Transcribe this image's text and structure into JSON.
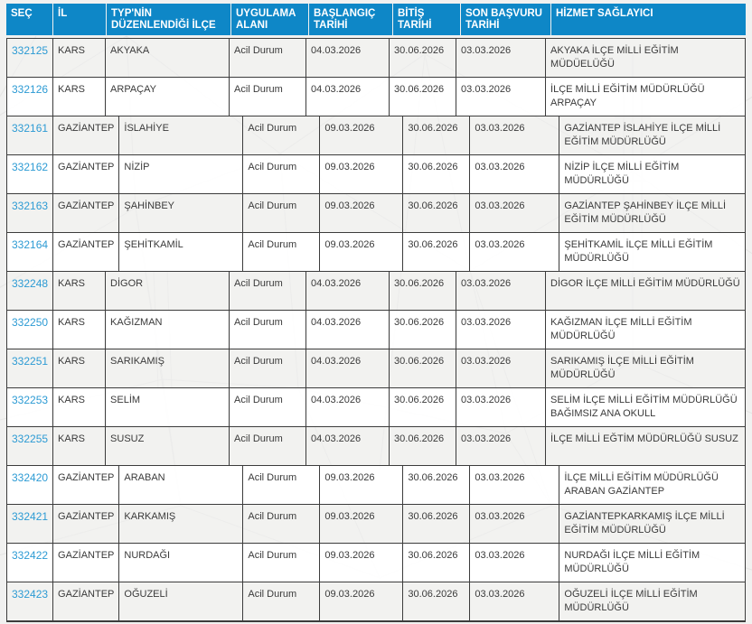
{
  "colors": {
    "header_background": "#0e87c7",
    "header_text": "#ffffff",
    "link_blue": "#2d9bd4",
    "cell_border": "#3c3c3c",
    "row_alt_background": "#f2f2f1",
    "page_background": "#f1f1f0"
  },
  "table": {
    "columns": [
      {
        "key": "id",
        "label": "SEÇ"
      },
      {
        "key": "il",
        "label": "İL"
      },
      {
        "key": "ilce",
        "label": "TYP'NİN DÜZENLENDİĞİ İLÇE"
      },
      {
        "key": "uygulama_alani",
        "label": "UYGULAMA ALANI"
      },
      {
        "key": "baslangic_tarihi",
        "label": "BAŞLANGIÇ TARİHİ"
      },
      {
        "key": "bitis_tarihi",
        "label": "BİTİŞ TARİHİ"
      },
      {
        "key": "son_basvuru_tarihi",
        "label": "SON BAŞVURU TARİHİ"
      },
      {
        "key": "hizmet_saglayici",
        "label": "HİZMET SAĞLAYICI"
      }
    ],
    "rows": [
      {
        "id": "332125",
        "il": "KARS",
        "ilce": "AKYAKA",
        "uygulama_alani": "Acil Durum",
        "baslangic_tarihi": "04.03.2026",
        "bitis_tarihi": "30.06.2026",
        "son_basvuru_tarihi": "03.03.2026",
        "hizmet_saglayici": "AKYAKA İLÇE MİLLİ EĞİTİM MÜDÜELÜĞÜ"
      },
      {
        "id": "332126",
        "il": "KARS",
        "ilce": "ARPAÇAY",
        "uygulama_alani": "Acil Durum",
        "baslangic_tarihi": "04.03.2026",
        "bitis_tarihi": "30.06.2026",
        "son_basvuru_tarihi": "03.03.2026",
        "hizmet_saglayici": "İLÇE MİLLİ EĞİTİM MÜDÜRLÜĞÜ ARPAÇAY"
      },
      {
        "id": "332161",
        "il": "GAZİANTEP",
        "ilce": "İSLAHİYE",
        "uygulama_alani": "Acil Durum",
        "baslangic_tarihi": "09.03.2026",
        "bitis_tarihi": "30.06.2026",
        "son_basvuru_tarihi": "03.03.2026",
        "hizmet_saglayici": "GAZİANTEP İSLAHİYE İLÇE MİLLİ EĞİTİM MÜDÜRLÜĞÜ"
      },
      {
        "id": "332162",
        "il": "GAZİANTEP",
        "ilce": "NİZİP",
        "uygulama_alani": "Acil Durum",
        "baslangic_tarihi": "09.03.2026",
        "bitis_tarihi": "30.06.2026",
        "son_basvuru_tarihi": "03.03.2026",
        "hizmet_saglayici": "NİZİP İLÇE MİLLİ EĞİTİM MÜDÜRLÜĞÜ"
      },
      {
        "id": "332163",
        "il": "GAZİANTEP",
        "ilce": "ŞAHİNBEY",
        "uygulama_alani": "Acil Durum",
        "baslangic_tarihi": "09.03.2026",
        "bitis_tarihi": "30.06.2026",
        "son_basvuru_tarihi": "03.03.2026",
        "hizmet_saglayici": "GAZİANTEP ŞAHİNBEY İLÇE MİLLİ EĞİTİM MÜDÜRLÜĞÜ"
      },
      {
        "id": "332164",
        "il": "GAZİANTEP",
        "ilce": "ŞEHİTKAMİL",
        "uygulama_alani": "Acil Durum",
        "baslangic_tarihi": "09.03.2026",
        "bitis_tarihi": "30.06.2026",
        "son_basvuru_tarihi": "03.03.2026",
        "hizmet_saglayici": "ŞEHİTKAMİL İLÇE MİLLİ EĞİTİM MÜDÜRLÜĞÜ"
      },
      {
        "id": "332248",
        "il": "KARS",
        "ilce": "DİGOR",
        "uygulama_alani": "Acil Durum",
        "baslangic_tarihi": "04.03.2026",
        "bitis_tarihi": "30.06.2026",
        "son_basvuru_tarihi": "03.03.2026",
        "hizmet_saglayici": "DİGOR İLÇE MİLLİ EĞİTİM MÜDÜRLÜĞÜ"
      },
      {
        "id": "332250",
        "il": "KARS",
        "ilce": "KAĞIZMAN",
        "uygulama_alani": "Acil Durum",
        "baslangic_tarihi": "04.03.2026",
        "bitis_tarihi": "30.06.2026",
        "son_basvuru_tarihi": "03.03.2026",
        "hizmet_saglayici": "KAĞIZMAN İLÇE MİLLİ EĞİTİM MÜDÜRLÜĞÜ"
      },
      {
        "id": "332251",
        "il": "KARS",
        "ilce": "SARIKAMIŞ",
        "uygulama_alani": "Acil Durum",
        "baslangic_tarihi": "04.03.2026",
        "bitis_tarihi": "30.06.2026",
        "son_basvuru_tarihi": "03.03.2026",
        "hizmet_saglayici": "SARIKAMIŞ İLÇE MİLLİ EĞİTİM MÜDÜRLÜĞÜ"
      },
      {
        "id": "332253",
        "il": "KARS",
        "ilce": "SELİM",
        "uygulama_alani": "Acil Durum",
        "baslangic_tarihi": "04.03.2026",
        "bitis_tarihi": "30.06.2026",
        "son_basvuru_tarihi": "03.03.2026",
        "hizmet_saglayici": "SELİM İLÇE MİLLİ EĞİTİM MÜDÜRLÜĞÜ BAĞIMSIZ ANA OKULL"
      },
      {
        "id": "332255",
        "il": "KARS",
        "ilce": "SUSUZ",
        "uygulama_alani": "Acil Durum",
        "baslangic_tarihi": "04.03.2026",
        "bitis_tarihi": "30.06.2026",
        "son_basvuru_tarihi": "03.03.2026",
        "hizmet_saglayici": "İLÇE MİLLİ EĞTİM MÜDÜRLÜĞÜ SUSUZ"
      },
      {
        "id": "332420",
        "il": "GAZİANTEP",
        "ilce": "ARABAN",
        "uygulama_alani": "Acil Durum",
        "baslangic_tarihi": "09.03.2026",
        "bitis_tarihi": "30.06.2026",
        "son_basvuru_tarihi": "03.03.2026",
        "hizmet_saglayici": "İLÇE MİLLİ EĞİTİM MÜDÜRLÜĞÜ ARABAN GAZİANTEP"
      },
      {
        "id": "332421",
        "il": "GAZİANTEP",
        "ilce": "KARKAMIŞ",
        "uygulama_alani": "Acil Durum",
        "baslangic_tarihi": "09.03.2026",
        "bitis_tarihi": "30.06.2026",
        "son_basvuru_tarihi": "03.03.2026",
        "hizmet_saglayici": "GAZİANTEPKARKAMIŞ İLÇE MİLLİ EĞİTİM MÜDÜRLÜĞÜ"
      },
      {
        "id": "332422",
        "il": "GAZİANTEP",
        "ilce": "NURDAĞI",
        "uygulama_alani": "Acil Durum",
        "baslangic_tarihi": "09.03.2026",
        "bitis_tarihi": "30.06.2026",
        "son_basvuru_tarihi": "03.03.2026",
        "hizmet_saglayici": "NURDAĞI İLÇE MİLLİ EĞİTİM MÜDÜRLÜĞÜ"
      },
      {
        "id": "332423",
        "il": "GAZİANTEP",
        "ilce": "OĞUZELİ",
        "uygulama_alani": "Acil Durum",
        "baslangic_tarihi": "09.03.2026",
        "bitis_tarihi": "30.06.2026",
        "son_basvuru_tarihi": "03.03.2026",
        "hizmet_saglayici": "OĞUZELİ İLÇE MİLLİ EĞİTİM MÜDÜRLÜĞÜ"
      }
    ]
  }
}
